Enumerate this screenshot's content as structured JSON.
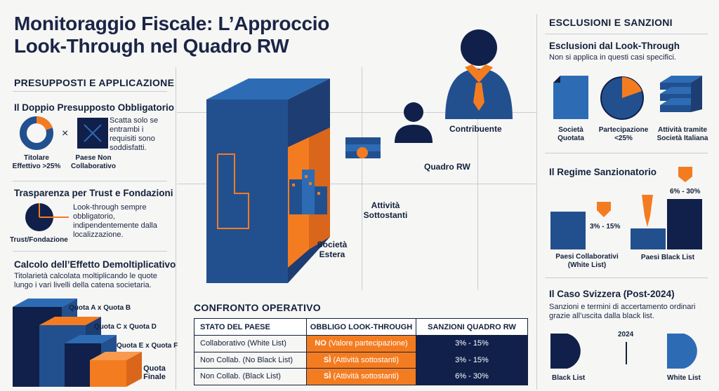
{
  "title": {
    "line1": "Monitoraggio Fiscale: L’Approccio",
    "line2": "Look-Through nel Quadro RW"
  },
  "left": {
    "section_title": "PRESUPPOSTI E APPLICAZIONE",
    "doppio": {
      "heading": "Il Doppio Presupposto Obbligatorio",
      "times": "×",
      "label_titolare": "Titolare Effettivo >25%",
      "label_paese": "Paese Non Collaborativo",
      "text": "Scatta solo se entrambi i requisiti sono soddisfatti."
    },
    "trust": {
      "heading": "Trasparenza per Trust e Fondazioni",
      "text": "Look-through sempre obbligatorio, indipendentemente dalla localizzazione.",
      "label": "Trust/Fondazione"
    },
    "calcolo": {
      "heading": "Calcolo dell’Effetto Demoltiplicativo",
      "text": "Titolarietà calcolata moltiplicando le quote lungo i vari livelli della catena societaria.",
      "steps": [
        "Quota A x Quota B",
        "Quota C x Quota D",
        "Quota E x Quota F",
        "Quota Finale"
      ]
    }
  },
  "center": {
    "contribuente": "Contribuente",
    "quadro_rw": "Quadro RW",
    "attivita": "Attività Sottostanti",
    "societa": "Società Estera",
    "confronto": {
      "heading": "CONFRONTO OPERATIVO",
      "columns": [
        "STATO DEL PAESE",
        "OBBLIGO LOOK-THROUGH",
        "SANZIONI QUADRO RW"
      ],
      "rows": [
        {
          "stato": "Collaborativo (White List)",
          "obbligo_b": "NO",
          "obbligo_t": "(Valore partecipazione)",
          "sanzioni": "3% - 15%"
        },
        {
          "stato": "Non Collab. (No Black List)",
          "obbligo_b": "SÌ",
          "obbligo_t": "(Attività sottostanti)",
          "sanzioni": "3% - 15%"
        },
        {
          "stato": "Non Collab. (Black List)",
          "obbligo_b": "SÌ",
          "obbligo_t": "(Attività sottostanti)",
          "sanzioni": "6% - 30%"
        }
      ]
    }
  },
  "right": {
    "section_title": "ESCLUSIONI E SANZIONI",
    "esclusioni": {
      "heading": "Esclusioni dal Look-Through",
      "text": "Non si applica in questi casi specifici.",
      "items": [
        "Società Quotata",
        "Partecipazione <25%",
        "Attività tramite Società Italiana"
      ]
    },
    "regime": {
      "heading": "Il Regime Sanzionatorio",
      "white": {
        "range": "3% - 15%",
        "label": "Paesi Collaborativi (White List)"
      },
      "black": {
        "range": "6% - 30%",
        "label": "Paesi Black List"
      }
    },
    "svizzera": {
      "heading": "Il Caso Svizzera (Post-2024)",
      "text": "Sanzioni e termini di accertamento ordinari grazie all’uscita dalla black list.",
      "year": "2024",
      "left_label": "Black List",
      "right_label": "White List"
    }
  },
  "colors": {
    "navy": "#10204a",
    "blue": "#22508f",
    "orange": "#f47c20",
    "lightblue": "#2d6cb5"
  }
}
